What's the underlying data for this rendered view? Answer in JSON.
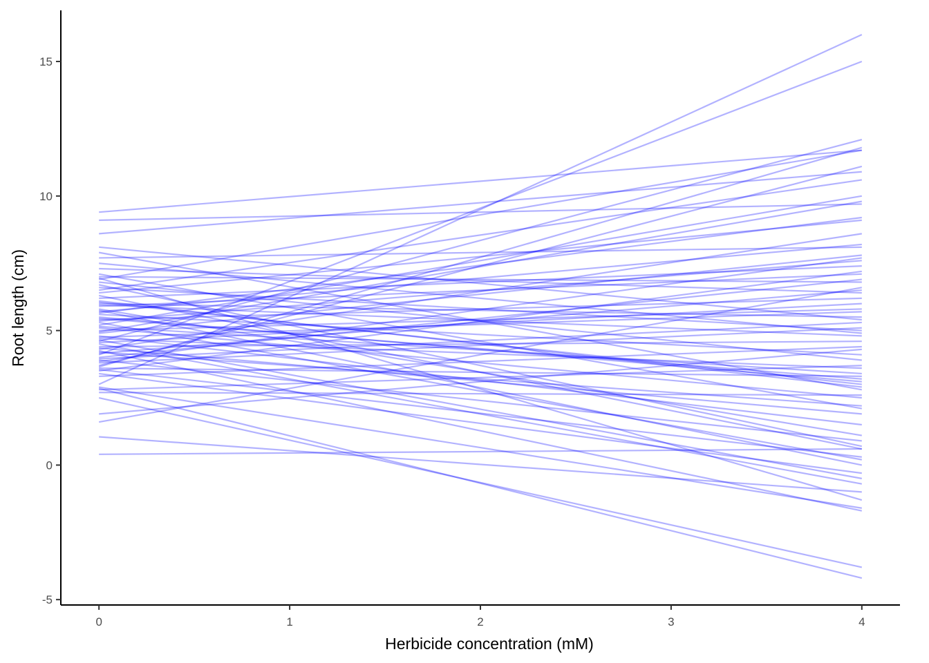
{
  "chart_data": {
    "type": "line",
    "title": "",
    "xlabel": "Herbicide concentration (mM)",
    "ylabel": "Root length (cm)",
    "xlim": [
      -0.2,
      4.2
    ],
    "ylim": [
      -5.2,
      16.9
    ],
    "x_ticks": [
      0,
      1,
      2,
      3,
      4
    ],
    "x_tick_labels": [
      "0",
      "1",
      "2",
      "3",
      "4"
    ],
    "y_ticks": [
      -5,
      0,
      5,
      10,
      15
    ],
    "y_tick_labels": [
      "-5",
      "0",
      "5",
      "10",
      "15"
    ],
    "grid": false,
    "legend": "none",
    "line_color": "#0000FF",
    "line_opacity": 0.3,
    "x": [
      0,
      4
    ],
    "series": [
      {
        "values": [
          9.4,
          11.7
        ]
      },
      {
        "values": [
          9.1,
          9.7
        ]
      },
      {
        "values": [
          8.6,
          10.9
        ]
      },
      {
        "values": [
          8.1,
          5.4
        ]
      },
      {
        "values": [
          7.9,
          2.8
        ]
      },
      {
        "values": [
          7.7,
          8.1
        ]
      },
      {
        "values": [
          7.5,
          4.9
        ]
      },
      {
        "values": [
          7.3,
          6.4
        ]
      },
      {
        "values": [
          7.1,
          2.1
        ]
      },
      {
        "values": [
          6.9,
          11.7
        ]
      },
      {
        "values": [
          6.8,
          3.9
        ]
      },
      {
        "values": [
          6.6,
          5.0
        ]
      },
      {
        "values": [
          6.4,
          9.1
        ]
      },
      {
        "values": [
          6.3,
          0.6
        ]
      },
      {
        "values": [
          6.2,
          7.4
        ]
      },
      {
        "values": [
          6.1,
          2.9
        ]
      },
      {
        "values": [
          6.0,
          5.5
        ]
      },
      {
        "values": [
          5.9,
          7.1
        ]
      },
      {
        "values": [
          5.8,
          1.1
        ]
      },
      {
        "values": [
          5.7,
          8.2
        ]
      },
      {
        "values": [
          5.6,
          4.1
        ]
      },
      {
        "values": [
          5.5,
          3.1
        ]
      },
      {
        "values": [
          5.4,
          6.2
        ]
      },
      {
        "values": [
          5.3,
          0.2
        ]
      },
      {
        "values": [
          5.2,
          10.0
        ]
      },
      {
        "values": [
          5.1,
          2.5
        ]
      },
      {
        "values": [
          5.0,
          5.8
        ]
      },
      {
        "values": [
          4.9,
          7.8
        ]
      },
      {
        "values": [
          4.8,
          1.5
        ]
      },
      {
        "values": [
          4.7,
          3.6
        ]
      },
      {
        "values": [
          4.6,
          12.1
        ]
      },
      {
        "values": [
          4.55,
          6.0
        ]
      },
      {
        "values": [
          4.5,
          -0.7
        ]
      },
      {
        "values": [
          4.4,
          4.6
        ]
      },
      {
        "values": [
          4.3,
          8.6
        ]
      },
      {
        "values": [
          4.2,
          2.2
        ]
      },
      {
        "values": [
          4.1,
          15.0
        ]
      },
      {
        "values": [
          4.0,
          6.9
        ]
      },
      {
        "values": [
          3.9,
          0.9
        ]
      },
      {
        "values": [
          3.8,
          5.1
        ]
      },
      {
        "values": [
          3.7,
          11.1
        ]
      },
      {
        "values": [
          3.6,
          3.3
        ]
      },
      {
        "values": [
          3.5,
          7.2
        ]
      },
      {
        "values": [
          3.4,
          -0.3
        ]
      },
      {
        "values": [
          3.3,
          4.4
        ]
      },
      {
        "values": [
          3.0,
          16.0
        ]
      },
      {
        "values": [
          2.9,
          -1.6
        ]
      },
      {
        "values": [
          2.8,
          3.7
        ]
      },
      {
        "values": [
          2.7,
          2.6
        ]
      },
      {
        "values": [
          2.5,
          -3.8
        ]
      },
      {
        "values": [
          1.9,
          4.3
        ]
      },
      {
        "values": [
          1.6,
          6.6
        ]
      },
      {
        "values": [
          1.05,
          -1.0
        ]
      },
      {
        "values": [
          0.4,
          0.6
        ]
      },
      {
        "values": [
          6.5,
          10.6
        ]
      },
      {
        "values": [
          5.75,
          0.0
        ]
      },
      {
        "values": [
          4.95,
          9.8
        ]
      },
      {
        "values": [
          4.25,
          -1.7
        ]
      },
      {
        "values": [
          3.65,
          11.8
        ]
      },
      {
        "values": [
          6.05,
          3.0
        ]
      },
      {
        "values": [
          5.35,
          7.6
        ]
      },
      {
        "values": [
          4.65,
          -0.5
        ]
      },
      {
        "values": [
          3.95,
          5.3
        ]
      },
      {
        "values": [
          2.85,
          -4.2
        ]
      },
      {
        "values": [
          7.0,
          6.8
        ]
      },
      {
        "values": [
          6.7,
          0.7
        ]
      },
      {
        "values": [
          5.95,
          4.8
        ]
      },
      {
        "values": [
          5.15,
          3.4
        ]
      },
      {
        "values": [
          4.35,
          1.9
        ]
      },
      {
        "values": [
          3.85,
          7.7
        ]
      },
      {
        "values": [
          5.65,
          9.2
        ]
      },
      {
        "values": [
          4.75,
          5.7
        ]
      },
      {
        "values": [
          3.55,
          0.3
        ]
      },
      {
        "values": [
          6.95,
          -1.3
        ]
      },
      {
        "values": [
          5.45,
          3.2
        ]
      },
      {
        "values": [
          4.15,
          6.5
        ]
      }
    ]
  }
}
